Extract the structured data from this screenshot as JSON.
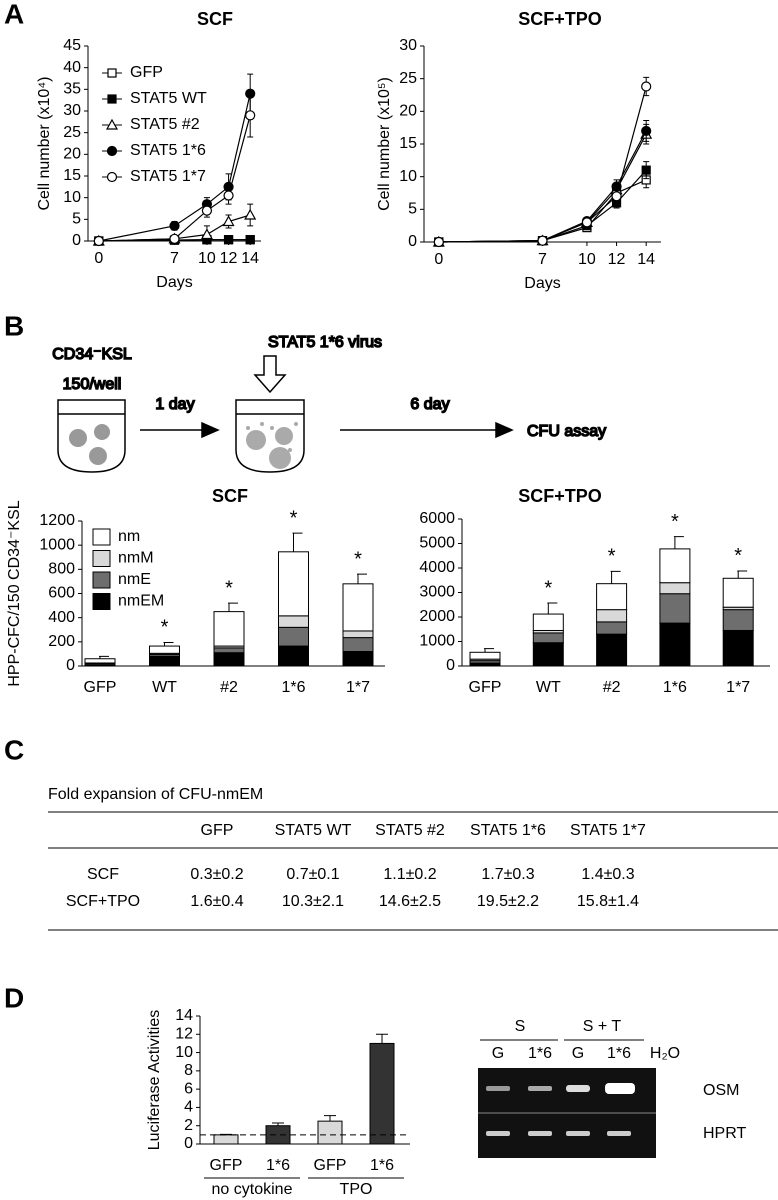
{
  "panels": [
    "A",
    "B",
    "C",
    "D"
  ],
  "chart_data": [
    {
      "type": "line",
      "title": "SCF",
      "ylabel": "Cell number (x10⁴)",
      "xlabel": "Days",
      "x": [
        0,
        7,
        10,
        12,
        14
      ],
      "xlim": [
        -1,
        15
      ],
      "xticks": [
        0,
        7,
        10,
        12,
        14
      ],
      "ylim": [
        0,
        45
      ],
      "yticks": [
        0,
        5,
        10,
        15,
        20,
        25,
        30,
        35,
        40,
        45
      ],
      "legend": "upper left",
      "series": [
        {
          "name": "GFP",
          "color": "#000000",
          "marker": "square",
          "fill": "open",
          "values": [
            0,
            0.2,
            0.3,
            0.3,
            0.3
          ],
          "errors": [
            0,
            0.1,
            0.1,
            0.1,
            0.1
          ]
        },
        {
          "name": "STAT5 WT",
          "color": "#000000",
          "marker": "square",
          "fill": "filled",
          "values": [
            0,
            0.2,
            0.3,
            0.3,
            0.3
          ],
          "errors": [
            0,
            0.1,
            0.1,
            0.1,
            0.1
          ]
        },
        {
          "name": "STAT5 #2",
          "color": "#000000",
          "marker": "triangle",
          "fill": "open",
          "values": [
            0,
            0.5,
            1.5,
            4.5,
            6
          ],
          "errors": [
            0,
            0.3,
            2,
            1.5,
            2.5
          ]
        },
        {
          "name": "STAT5 1*6",
          "color": "#000000",
          "marker": "circle",
          "fill": "filled",
          "values": [
            0,
            3.5,
            8.5,
            12.5,
            34
          ],
          "errors": [
            0,
            1,
            1.5,
            3,
            4.5
          ]
        },
        {
          "name": "STAT5 1*7",
          "color": "#000000",
          "marker": "circle",
          "fill": "open",
          "values": [
            0,
            0.5,
            7,
            10.5,
            29
          ],
          "errors": [
            0,
            0.3,
            1.5,
            2,
            5
          ]
        }
      ]
    },
    {
      "type": "line",
      "title": "SCF+TPO",
      "ylabel": "Cell number (x10⁵)",
      "xlabel": "Days",
      "x": [
        0,
        7,
        10,
        12,
        14
      ],
      "xlim": [
        -1,
        15
      ],
      "xticks": [
        0,
        7,
        10,
        12,
        14
      ],
      "ylim": [
        0,
        30
      ],
      "yticks": [
        0,
        5,
        10,
        15,
        20,
        25,
        30
      ],
      "series": [
        {
          "name": "GFP",
          "color": "#000000",
          "marker": "square",
          "fill": "open",
          "values": [
            0,
            0.2,
            2.2,
            7.5,
            9.5
          ],
          "errors": [
            0,
            0.1,
            0.4,
            1,
            1.2
          ]
        },
        {
          "name": "STAT5 WT",
          "color": "#000000",
          "marker": "square",
          "fill": "filled",
          "values": [
            0,
            0.2,
            2.5,
            6,
            11
          ],
          "errors": [
            0,
            0.1,
            0.4,
            0.8,
            1.3
          ]
        },
        {
          "name": "STAT5 #2",
          "color": "#000000",
          "marker": "triangle",
          "fill": "open",
          "values": [
            0,
            0.2,
            3,
            8,
            16.5
          ],
          "errors": [
            0,
            0.1,
            0.4,
            1,
            1.5
          ]
        },
        {
          "name": "STAT5 1*6",
          "color": "#000000",
          "marker": "circle",
          "fill": "filled",
          "values": [
            0,
            0.2,
            3.2,
            8.5,
            17
          ],
          "errors": [
            0,
            0.1,
            0.4,
            1,
            1.6
          ]
        },
        {
          "name": "STAT5 1*7",
          "color": "#000000",
          "marker": "circle",
          "fill": "open",
          "values": [
            0,
            0.2,
            3,
            7,
            23.8
          ],
          "errors": [
            0,
            0.1,
            0.4,
            1,
            1.4
          ]
        }
      ]
    },
    {
      "type": "bar",
      "stacked": true,
      "title": "SCF",
      "ylabel": "HPP-CFC/150 CD34⁻KSL",
      "categories": [
        "GFP",
        "WT",
        "#2",
        "1*6",
        "1*7"
      ],
      "ylim": [
        0,
        1200
      ],
      "yticks": [
        0,
        200,
        400,
        600,
        800,
        1000,
        1200
      ],
      "legend": "upper left",
      "series": [
        {
          "name": "nm",
          "color": "#ffffff",
          "values": [
            35,
            60,
            285,
            530,
            390
          ]
        },
        {
          "name": "nmM",
          "color": "#d9d9d9",
          "values": [
            5,
            10,
            15,
            95,
            55
          ]
        },
        {
          "name": "nmE",
          "color": "#6e6e6e",
          "values": [
            10,
            15,
            40,
            155,
            115
          ]
        },
        {
          "name": "nmEM",
          "color": "#000000",
          "values": [
            10,
            80,
            110,
            165,
            120
          ]
        }
      ],
      "errors": [
        20,
        30,
        70,
        155,
        80
      ],
      "significance": [
        null,
        "*",
        "*",
        "*",
        "*"
      ]
    },
    {
      "type": "bar",
      "stacked": true,
      "title": "SCF+TPO",
      "categories": [
        "GFP",
        "WT",
        "#2",
        "1*6",
        "1*7"
      ],
      "ylim": [
        0,
        6000
      ],
      "yticks": [
        0,
        1000,
        2000,
        3000,
        4000,
        5000,
        6000
      ],
      "series": [
        {
          "name": "nm",
          "color": "#ffffff",
          "values": [
            280,
            670,
            1060,
            1380,
            1180
          ]
        },
        {
          "name": "nmM",
          "color": "#d9d9d9",
          "values": [
            60,
            100,
            500,
            450,
            100
          ]
        },
        {
          "name": "nmE",
          "color": "#6e6e6e",
          "values": [
            100,
            400,
            500,
            1200,
            850
          ]
        },
        {
          "name": "nmEM",
          "color": "#000000",
          "values": [
            120,
            950,
            1300,
            1750,
            1450
          ]
        }
      ],
      "errors": [
        150,
        450,
        500,
        500,
        300
      ],
      "significance": [
        null,
        "*",
        "*",
        "*",
        "*"
      ]
    },
    {
      "type": "bar",
      "ylabel": "Luciferase Activities",
      "categories": [
        "GFP",
        "1*6",
        "GFP",
        "1*6"
      ],
      "groups": [
        "no cytokine",
        "TPO"
      ],
      "values": [
        1,
        2,
        2.5,
        11
      ],
      "errors": [
        0.05,
        0.3,
        0.6,
        1
      ],
      "colors": [
        "#d9d9d9",
        "#333333",
        "#d9d9d9",
        "#333333"
      ],
      "ylim": [
        0,
        14
      ],
      "yticks": [
        0,
        2,
        4,
        6,
        8,
        10,
        12,
        14
      ],
      "reference_line": 1
    }
  ],
  "diagram": {
    "cells": "CD34⁻KSL",
    "density": "150/well",
    "step1": "1 day",
    "virus": "STAT5 1*6 virus",
    "step2": "6 day",
    "assay": "CFU assay"
  },
  "table": {
    "caption": "Fold expansion of CFU-nmEM",
    "columns": [
      "GFP",
      "STAT5 WT",
      "STAT5 #2",
      "STAT5 1*6",
      "STAT5 1*7"
    ],
    "rows": [
      {
        "label": "SCF",
        "cells": [
          "0.3±0.2",
          "0.7±0.1",
          "1.1±0.2",
          "1.7±0.3",
          "1.4±0.3"
        ]
      },
      {
        "label": "SCF+TPO",
        "cells": [
          "1.6±0.4",
          "10.3±2.1",
          "14.6±2.5",
          "19.5±2.2",
          "15.8±1.4"
        ]
      }
    ]
  },
  "gel": {
    "groups": [
      "S",
      "S + T"
    ],
    "lanes": [
      "G",
      "1*6",
      "G",
      "1*6",
      "H₂O"
    ],
    "genes": [
      "OSM",
      "HPRT"
    ]
  }
}
